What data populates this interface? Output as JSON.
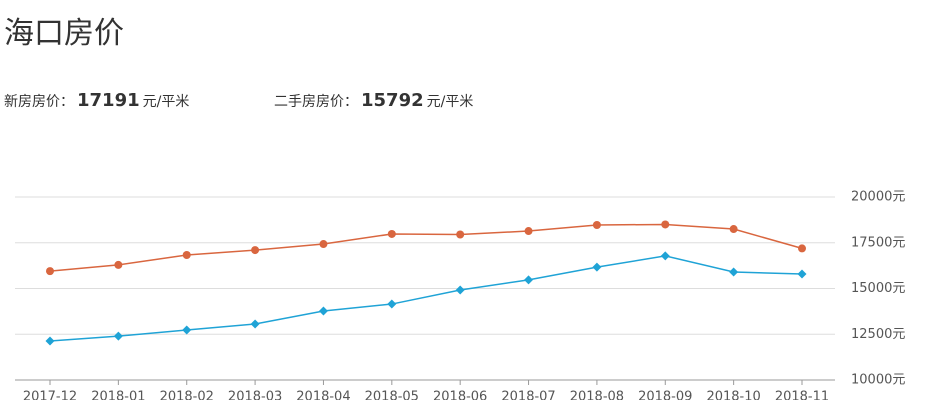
{
  "header": {
    "title": "海口房价"
  },
  "stats": [
    {
      "label": "新房房价：",
      "value": "17191",
      "unit": "元/平米"
    },
    {
      "label": "二手房房价：",
      "value": "15792",
      "unit": "元/平米"
    }
  ],
  "chart_data": {
    "type": "line",
    "categories": [
      "2017-12",
      "2018-01",
      "2018-02",
      "2018-03",
      "2018-04",
      "2018-05",
      "2018-06",
      "2018-07",
      "2018-08",
      "2018-09",
      "2018-10",
      "2018-11"
    ],
    "series": [
      {
        "color": "#d9663f",
        "marker": "circle",
        "values": [
          15950,
          16290,
          16830,
          17100,
          17430,
          17980,
          17950,
          18140,
          18470,
          18500,
          18250,
          17191
        ]
      },
      {
        "color": "#1fa3d6",
        "marker": "diamond",
        "values": [
          12130,
          12400,
          12730,
          13060,
          13770,
          14150,
          14920,
          15470,
          16170,
          16780,
          15900,
          15792
        ]
      }
    ],
    "ylim": [
      10000,
      20000
    ],
    "yticks": [
      {
        "value": 10000,
        "label": "10000元"
      },
      {
        "value": 12500,
        "label": "12500元"
      },
      {
        "value": 15000,
        "label": "15000元"
      },
      {
        "value": 17500,
        "label": "17500元"
      },
      {
        "value": 20000,
        "label": "20000元"
      }
    ],
    "grid": true
  }
}
